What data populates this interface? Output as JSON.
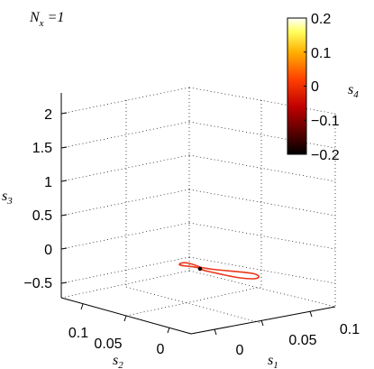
{
  "chart_data": {
    "type": "line3d",
    "annotation": {
      "var": "N",
      "sub": "x",
      "eq": " =1"
    },
    "axes": {
      "s1": {
        "label": "s",
        "sub": "1",
        "ticks": [
          "0",
          "0.05",
          "0.1"
        ]
      },
      "s2": {
        "label": "s",
        "sub": "2",
        "ticks": [
          "0",
          "0.05",
          "0.1"
        ]
      },
      "s3": {
        "label": "s",
        "sub": "3",
        "ticks": [
          "−0.5",
          "0",
          "0.5",
          "1",
          "1.5",
          "2"
        ],
        "range": [
          -0.5,
          2.3
        ]
      }
    },
    "colorbar": {
      "label": "s",
      "sub": "4",
      "ticks": [
        "0.2",
        "0.1",
        "0",
        "−0.1",
        "−0.2"
      ],
      "range": [
        -0.2,
        0.2
      ]
    },
    "grid": true,
    "trajectory_color": "#e8361a",
    "marker_color": "#000000"
  }
}
